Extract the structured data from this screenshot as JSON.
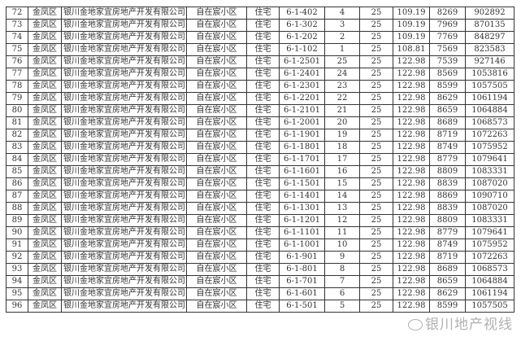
{
  "rows": [
    [
      "72",
      "金凤区",
      "银川金地家宜房地产开发有限公司",
      "自在宸小区",
      "住宅",
      "6-1-402",
      "4",
      "25",
      "109.19",
      "8269",
      "902892"
    ],
    [
      "73",
      "金凤区",
      "银川金地家宜房地产开发有限公司",
      "自在宸小区",
      "住宅",
      "6-1-302",
      "3",
      "25",
      "109.19",
      "7969",
      "870135"
    ],
    [
      "74",
      "金凤区",
      "银川金地家宜房地产开发有限公司",
      "自在宸小区",
      "住宅",
      "6-1-202",
      "2",
      "25",
      "109.19",
      "7769",
      "848297"
    ],
    [
      "75",
      "金凤区",
      "银川金地家宜房地产开发有限公司",
      "自在宸小区",
      "住宅",
      "6-1-102",
      "1",
      "25",
      "108.81",
      "7569",
      "823583"
    ],
    [
      "76",
      "金凤区",
      "银川金地家宜房地产开发有限公司",
      "自在宸小区",
      "住宅",
      "6-1-2501",
      "25",
      "25",
      "122.98",
      "7539",
      "927146"
    ],
    [
      "77",
      "金凤区",
      "银川金地家宜房地产开发有限公司",
      "自在宸小区",
      "住宅",
      "6-1-2401",
      "24",
      "25",
      "122.98",
      "8569",
      "1053816"
    ],
    [
      "78",
      "金凤区",
      "银川金地家宜房地产开发有限公司",
      "自在宸小区",
      "住宅",
      "6-1-2301",
      "23",
      "25",
      "122.98",
      "8599",
      "1057505"
    ],
    [
      "79",
      "金凤区",
      "银川金地家宜房地产开发有限公司",
      "自在宸小区",
      "住宅",
      "6-1-2201",
      "22",
      "25",
      "122.98",
      "8629",
      "1061194"
    ],
    [
      "80",
      "金凤区",
      "银川金地家宜房地产开发有限公司",
      "自在宸小区",
      "住宅",
      "6-1-2101",
      "21",
      "25",
      "122.98",
      "8659",
      "1064884"
    ],
    [
      "81",
      "金凤区",
      "银川金地家宜房地产开发有限公司",
      "自在宸小区",
      "住宅",
      "6-1-2001",
      "20",
      "25",
      "122.98",
      "8689",
      "1068573"
    ],
    [
      "82",
      "金凤区",
      "银川金地家宜房地产开发有限公司",
      "自在宸小区",
      "住宅",
      "6-1-1901",
      "19",
      "25",
      "122.98",
      "8719",
      "1072263"
    ],
    [
      "83",
      "金凤区",
      "银川金地家宜房地产开发有限公司",
      "自在宸小区",
      "住宅",
      "6-1-1801",
      "18",
      "25",
      "122.98",
      "8749",
      "1075952"
    ],
    [
      "84",
      "金凤区",
      "银川金地家宜房地产开发有限公司",
      "自在宸小区",
      "住宅",
      "6-1-1701",
      "17",
      "25",
      "122.98",
      "8779",
      "1079641"
    ],
    [
      "85",
      "金凤区",
      "银川金地家宜房地产开发有限公司",
      "自在宸小区",
      "住宅",
      "6-1-1601",
      "16",
      "25",
      "122.98",
      "8809",
      "1083331"
    ],
    [
      "86",
      "金凤区",
      "银川金地家宜房地产开发有限公司",
      "自在宸小区",
      "住宅",
      "6-1-1501",
      "15",
      "25",
      "122.98",
      "8839",
      "1087020"
    ],
    [
      "87",
      "金凤区",
      "银川金地家宜房地产开发有限公司",
      "自在宸小区",
      "住宅",
      "6-1-1401",
      "14",
      "25",
      "122.98",
      "8869",
      "1090710"
    ],
    [
      "88",
      "金凤区",
      "银川金地家宜房地产开发有限公司",
      "自在宸小区",
      "住宅",
      "6-1-1301",
      "13",
      "25",
      "122.98",
      "8839",
      "1087020"
    ],
    [
      "89",
      "金凤区",
      "银川金地家宜房地产开发有限公司",
      "自在宸小区",
      "住宅",
      "6-1-1201",
      "12",
      "25",
      "122.98",
      "8809",
      "1083331"
    ],
    [
      "90",
      "金凤区",
      "银川金地家宜房地产开发有限公司",
      "自在宸小区",
      "住宅",
      "6-1-1101",
      "11",
      "25",
      "122.98",
      "8779",
      "1079641"
    ],
    [
      "91",
      "金凤区",
      "银川金地家宜房地产开发有限公司",
      "自在宸小区",
      "住宅",
      "6-1-1001",
      "10",
      "25",
      "122.98",
      "8749",
      "1075952"
    ],
    [
      "92",
      "金凤区",
      "银川金地家宜房地产开发有限公司",
      "自在宸小区",
      "住宅",
      "6-1-901",
      "9",
      "25",
      "122.98",
      "8719",
      "1072263"
    ],
    [
      "93",
      "金凤区",
      "银川金地家宜房地产开发有限公司",
      "自在宸小区",
      "住宅",
      "6-1-801",
      "8",
      "25",
      "122.98",
      "8689",
      "1068573"
    ],
    [
      "94",
      "金凤区",
      "银川金地家宜房地产开发有限公司",
      "自在宸小区",
      "住宅",
      "6-1-701",
      "7",
      "25",
      "122.98",
      "8659",
      "1064884"
    ],
    [
      "95",
      "金凤区",
      "银川金地家宜房地产开发有限公司",
      "自在宸小区",
      "住宅",
      "6-1-601",
      "6",
      "25",
      "122.98",
      "8629",
      "1061194"
    ],
    [
      "96",
      "金凤区",
      "银川金地家宜房地产开发有限公司",
      "自在宸小区",
      "住宅",
      "6-1-501",
      "5",
      "25",
      "122.98",
      "8599",
      "1057505"
    ]
  ],
  "watermark": "银川地产视线"
}
